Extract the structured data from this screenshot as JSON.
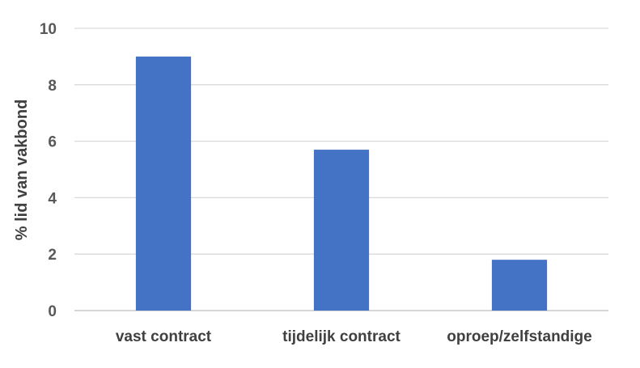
{
  "chart_data": {
    "type": "bar",
    "categories": [
      "vast contract",
      "tijdelijk contract",
      "oproep/zelfstandige"
    ],
    "values": [
      9.0,
      5.7,
      1.8
    ],
    "title": "",
    "xlabel": "",
    "ylabel": "% lid van vakbond",
    "ylim": [
      0,
      10
    ],
    "yticks": [
      0,
      2,
      4,
      6,
      8,
      10
    ],
    "grid": true,
    "legend": "none",
    "bar_color": "#4472C4"
  }
}
